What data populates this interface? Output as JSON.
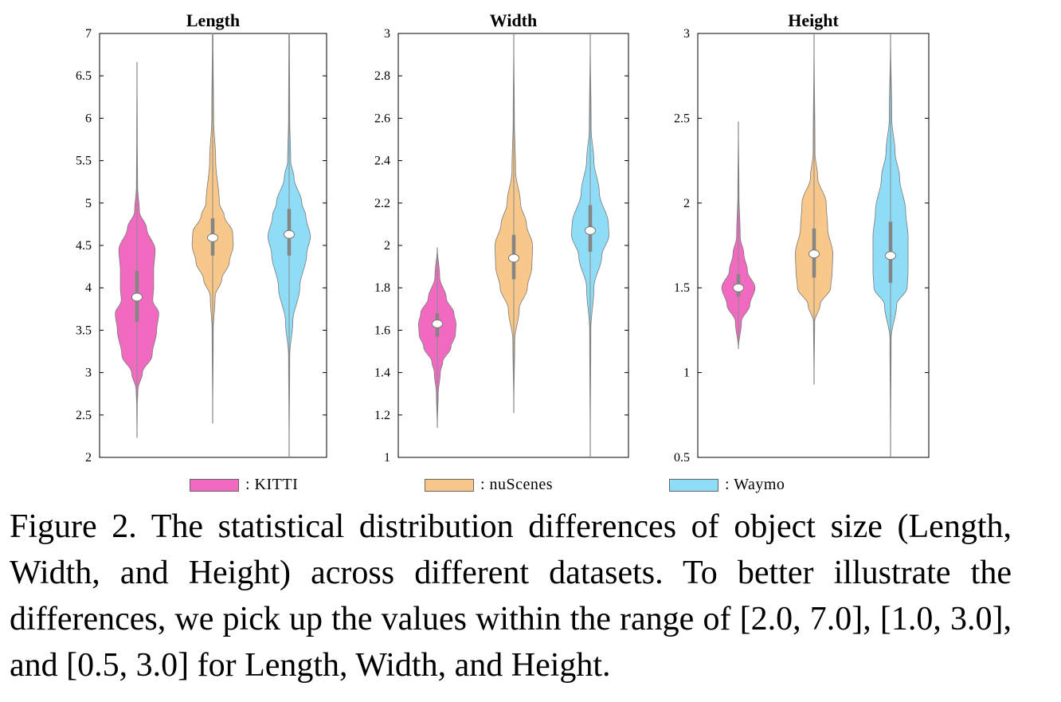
{
  "chart_data": {
    "type": "violin",
    "categories": [
      "KITTI",
      "nuScenes",
      "Waymo"
    ],
    "colors": {
      "KITTI": "#f06bbf",
      "nuScenes": "#f8c88a",
      "Waymo": "#8fdcf6"
    },
    "panels": [
      {
        "title": "Length",
        "ylim": [
          2,
          7
        ],
        "yticks": [
          "7",
          "6.5",
          "6",
          "5.5",
          "5",
          "4.5",
          "4",
          "3.5",
          "3",
          "2.5",
          "2"
        ],
        "series": [
          {
            "name": "KITTI",
            "median": 3.89,
            "q1": 3.6,
            "q3": 4.2,
            "min": 2.23,
            "max": 6.66,
            "density": [
              [
                2.23,
                0
              ],
              [
                2.6,
                0.01
              ],
              [
                2.8,
                0.03
              ],
              [
                3.0,
                0.18
              ],
              [
                3.2,
                0.5
              ],
              [
                3.5,
                0.65
              ],
              [
                3.7,
                0.72
              ],
              [
                3.85,
                0.52
              ],
              [
                4.0,
                0.55
              ],
              [
                4.2,
                0.55
              ],
              [
                4.45,
                0.6
              ],
              [
                4.7,
                0.32
              ],
              [
                4.9,
                0.08
              ],
              [
                5.2,
                0.02
              ],
              [
                5.8,
                0.01
              ],
              [
                6.66,
                0
              ]
            ]
          },
          {
            "name": "nuScenes",
            "median": 4.59,
            "q1": 4.38,
            "q3": 4.82,
            "min": 2.4,
            "max": 7.0,
            "density": [
              [
                2.4,
                0
              ],
              [
                3.5,
                0.02
              ],
              [
                3.9,
                0.08
              ],
              [
                4.1,
                0.3
              ],
              [
                4.3,
                0.55
              ],
              [
                4.5,
                0.68
              ],
              [
                4.65,
                0.66
              ],
              [
                4.85,
                0.38
              ],
              [
                5.0,
                0.22
              ],
              [
                5.5,
                0.1
              ],
              [
                6.0,
                0.03
              ],
              [
                7.0,
                0.01
              ]
            ]
          },
          {
            "name": "Waymo",
            "median": 4.63,
            "q1": 4.38,
            "q3": 4.93,
            "min": 2.0,
            "max": 7.0,
            "density": [
              [
                2.0,
                0
              ],
              [
                3.2,
                0.02
              ],
              [
                3.6,
                0.12
              ],
              [
                4.0,
                0.35
              ],
              [
                4.4,
                0.58
              ],
              [
                4.6,
                0.7
              ],
              [
                4.85,
                0.55
              ],
              [
                5.0,
                0.42
              ],
              [
                5.3,
                0.16
              ],
              [
                5.5,
                0.05
              ],
              [
                6.0,
                0.02
              ],
              [
                7.0,
                0.01
              ]
            ]
          }
        ]
      },
      {
        "title": "Width",
        "ylim": [
          1,
          3
        ],
        "yticks": [
          "3",
          "2.8",
          "2.6",
          "2.4",
          "2.2",
          "2",
          "1.8",
          "1.6",
          "1.4",
          "1.2",
          "1"
        ],
        "series": [
          {
            "name": "KITTI",
            "median": 1.63,
            "q1": 1.57,
            "q3": 1.68,
            "min": 1.14,
            "max": 1.99,
            "density": [
              [
                1.14,
                0
              ],
              [
                1.3,
                0.03
              ],
              [
                1.4,
                0.1
              ],
              [
                1.45,
                0.18
              ],
              [
                1.52,
                0.45
              ],
              [
                1.58,
                0.6
              ],
              [
                1.63,
                0.62
              ],
              [
                1.68,
                0.55
              ],
              [
                1.75,
                0.3
              ],
              [
                1.85,
                0.08
              ],
              [
                1.99,
                0
              ]
            ]
          },
          {
            "name": "nuScenes",
            "median": 1.94,
            "q1": 1.84,
            "q3": 2.05,
            "min": 1.21,
            "max": 3.0,
            "density": [
              [
                1.21,
                0
              ],
              [
                1.55,
                0.03
              ],
              [
                1.7,
                0.18
              ],
              [
                1.8,
                0.45
              ],
              [
                1.9,
                0.6
              ],
              [
                2.0,
                0.62
              ],
              [
                2.1,
                0.42
              ],
              [
                2.2,
                0.22
              ],
              [
                2.35,
                0.06
              ],
              [
                2.6,
                0.02
              ],
              [
                3.0,
                0
              ]
            ]
          },
          {
            "name": "Waymo",
            "median": 2.07,
            "q1": 1.97,
            "q3": 2.19,
            "min": 1.0,
            "max": 3.0,
            "density": [
              [
                1.0,
                0
              ],
              [
                1.6,
                0.02
              ],
              [
                1.8,
                0.12
              ],
              [
                1.95,
                0.38
              ],
              [
                2.05,
                0.62
              ],
              [
                2.1,
                0.6
              ],
              [
                2.25,
                0.3
              ],
              [
                2.4,
                0.12
              ],
              [
                2.55,
                0.03
              ],
              [
                3.0,
                0
              ]
            ]
          }
        ]
      },
      {
        "title": "Height",
        "ylim": [
          0.5,
          3
        ],
        "yticks": [
          "3",
          "2.5",
          "2",
          "1.5",
          "1",
          "0.5"
        ],
        "series": [
          {
            "name": "KITTI",
            "median": 1.5,
            "q1": 1.45,
            "q3": 1.58,
            "min": 1.14,
            "max": 2.48,
            "density": [
              [
                1.14,
                0
              ],
              [
                1.3,
                0.1
              ],
              [
                1.4,
                0.38
              ],
              [
                1.5,
                0.55
              ],
              [
                1.6,
                0.3
              ],
              [
                1.7,
                0.18
              ],
              [
                1.8,
                0.06
              ],
              [
                2.05,
                0.02
              ],
              [
                2.48,
                0
              ]
            ]
          },
          {
            "name": "nuScenes",
            "median": 1.7,
            "q1": 1.56,
            "q3": 1.85,
            "min": 0.93,
            "max": 3.0,
            "density": [
              [
                0.93,
                0
              ],
              [
                1.3,
                0.02
              ],
              [
                1.4,
                0.2
              ],
              [
                1.5,
                0.55
              ],
              [
                1.6,
                0.6
              ],
              [
                1.7,
                0.62
              ],
              [
                1.85,
                0.45
              ],
              [
                2.0,
                0.4
              ],
              [
                2.15,
                0.12
              ],
              [
                2.3,
                0.03
              ],
              [
                3.0,
                0
              ]
            ]
          },
          {
            "name": "Waymo",
            "median": 1.69,
            "q1": 1.53,
            "q3": 1.89,
            "min": 0.5,
            "max": 3.0,
            "density": [
              [
                0.5,
                0
              ],
              [
                1.2,
                0.02
              ],
              [
                1.4,
                0.2
              ],
              [
                1.5,
                0.55
              ],
              [
                1.6,
                0.58
              ],
              [
                1.8,
                0.58
              ],
              [
                1.95,
                0.5
              ],
              [
                2.15,
                0.3
              ],
              [
                2.3,
                0.15
              ],
              [
                2.5,
                0.04
              ],
              [
                3.0,
                0
              ]
            ]
          }
        ]
      }
    ]
  },
  "legend": [
    {
      "label": ": KITTI",
      "color": "#f06bbf"
    },
    {
      "label": ": nuScenes",
      "color": "#f8c88a"
    },
    {
      "label": ": Waymo",
      "color": "#8fdcf6"
    }
  ],
  "caption": "Figure 2.  The statistical distribution differences of object size (Length, Width, and Height) across different datasets.  To better illustrate the differences, we pick up the values within the range of [2.0, 7.0], [1.0, 3.0], and [0.5, 3.0] for Length, Width, and Height."
}
